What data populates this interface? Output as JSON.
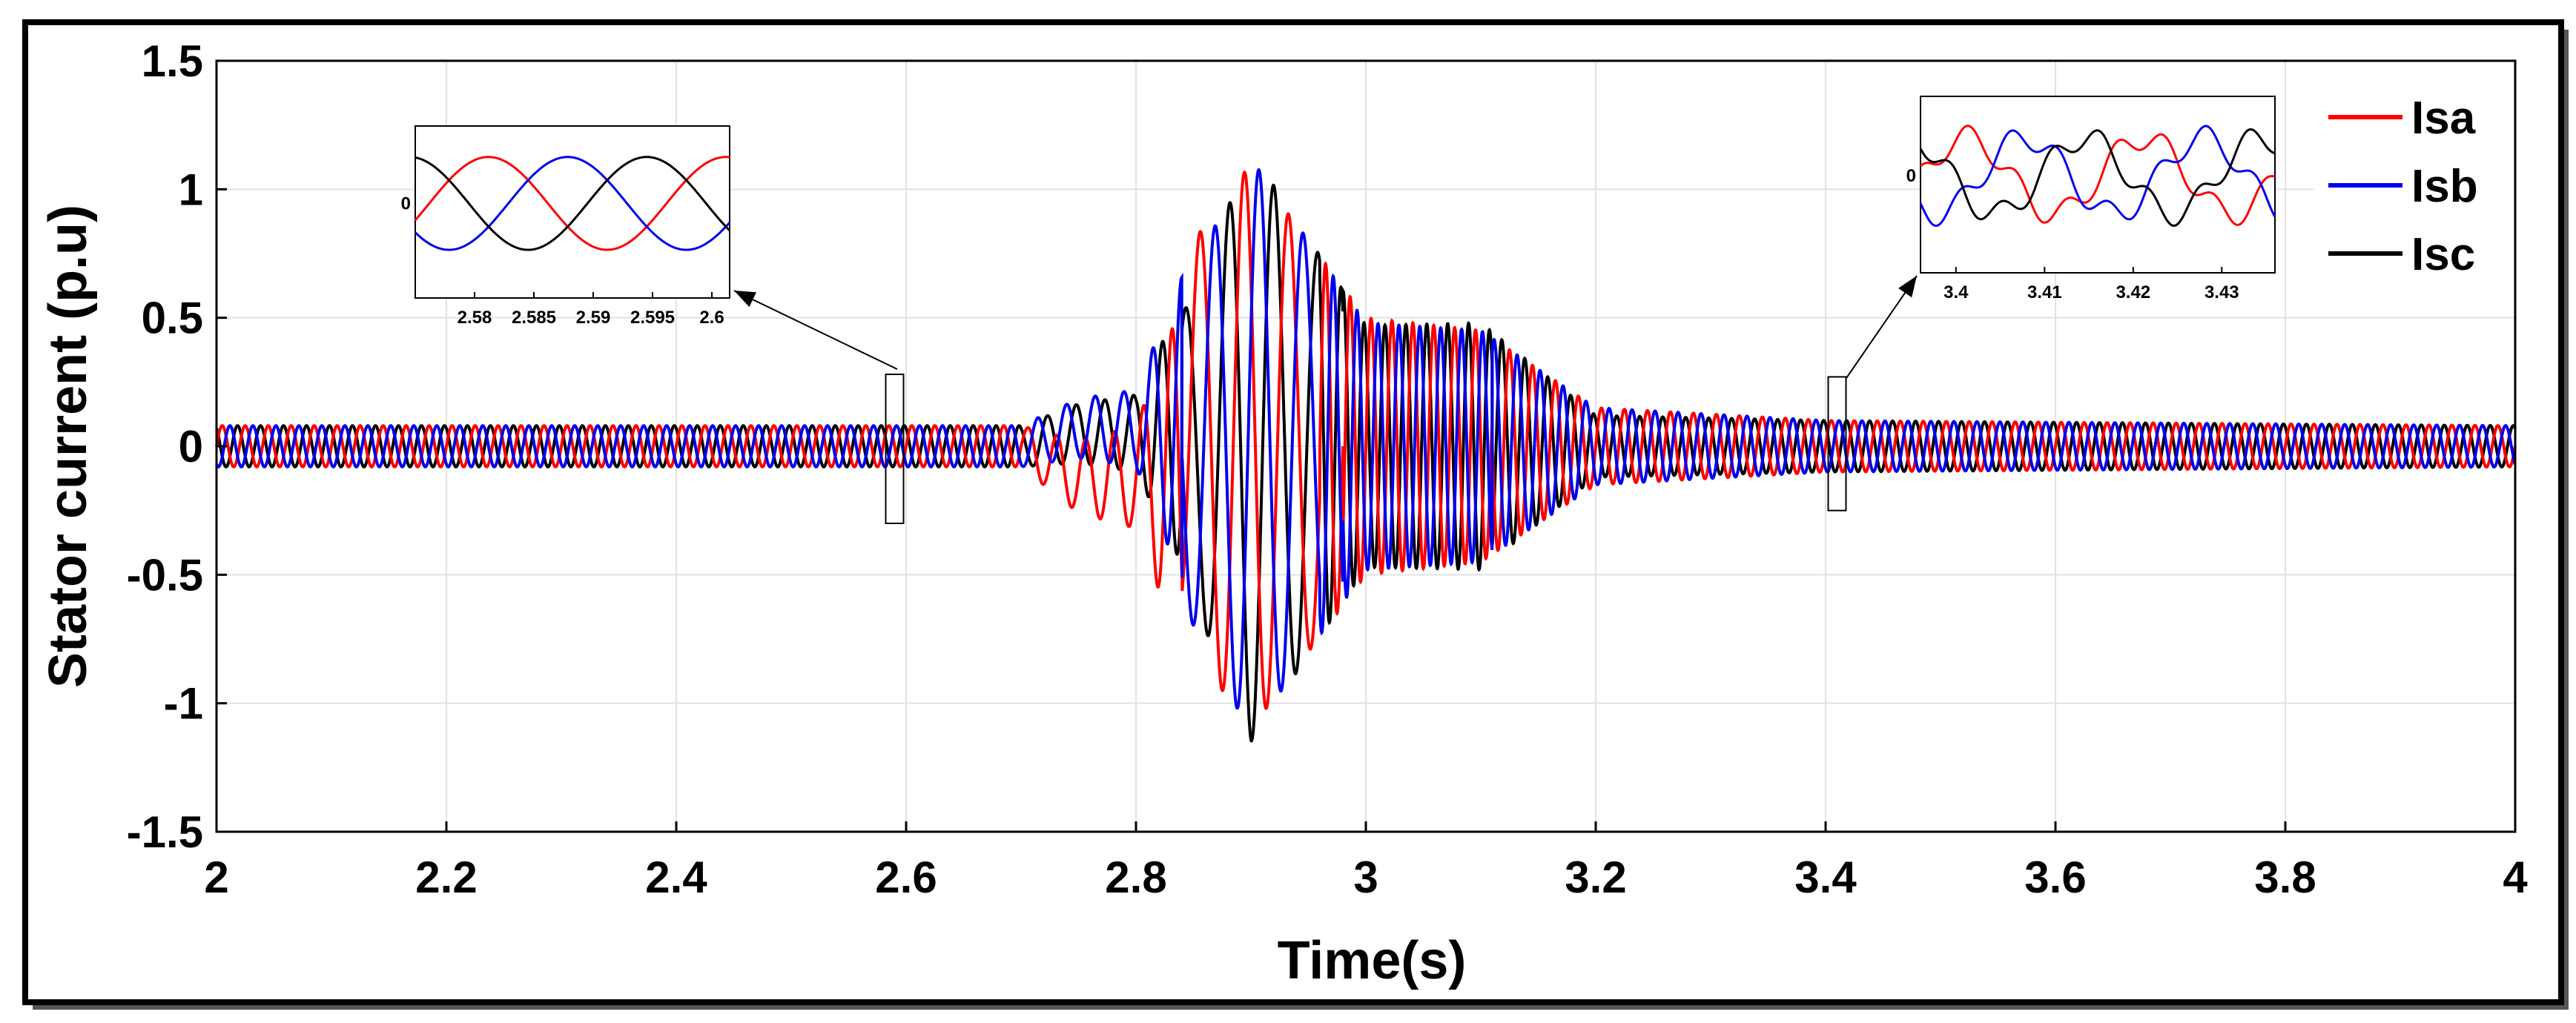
{
  "chart_data": {
    "type": "line",
    "title": "",
    "xlabel": "Time(s)",
    "ylabel": "Stator current (p.u)",
    "xlim": [
      2,
      4
    ],
    "ylim": [
      -1.5,
      1.5
    ],
    "x_ticks": [
      "2",
      "2.2",
      "2.4",
      "2.6",
      "2.8",
      "3",
      "3.2",
      "3.4",
      "3.6",
      "3.8",
      "4"
    ],
    "y_ticks": [
      "1.5",
      "1",
      "0.5",
      "0",
      "-0.5",
      "-1",
      "-1.5"
    ],
    "grid": true,
    "legend_position": "top-right",
    "colors": {
      "Isa": "#ff0000",
      "Isb": "#0000ee",
      "Isc": "#000000"
    },
    "series": [
      {
        "name": "Isa",
        "description_samples": {
          "x": [
            2.0,
            2.7,
            2.8,
            2.85,
            2.9,
            3.0,
            3.1,
            3.2,
            3.4,
            4.0
          ],
          "amplitude": [
            0.08,
            0.08,
            0.2,
            0.8,
            1.1,
            0.5,
            0.45,
            0.15,
            0.1,
            0.08
          ]
        }
      },
      {
        "name": "Isb",
        "description_samples": {
          "x": [
            2.0,
            2.7,
            2.8,
            2.85,
            2.9,
            3.0,
            3.1,
            3.2,
            3.4,
            4.0
          ],
          "amplitude": [
            0.08,
            0.08,
            0.15,
            0.7,
            1.12,
            0.48,
            0.45,
            0.15,
            0.1,
            0.08
          ]
        }
      },
      {
        "name": "Isc",
        "description_samples": {
          "x": [
            2.0,
            2.7,
            2.8,
            2.85,
            2.9,
            3.0,
            3.1,
            3.2,
            3.4,
            4.0
          ],
          "amplitude": [
            0.08,
            0.08,
            0.15,
            0.6,
            1.15,
            0.47,
            0.48,
            0.12,
            0.1,
            0.08
          ]
        }
      }
    ],
    "insets": [
      {
        "xlim": [
          2.575,
          2.6015
        ],
        "x_ticks": [
          "2.58",
          "2.585",
          "2.59",
          "2.595",
          "2.6"
        ],
        "y_tick": "0"
      },
      {
        "xlim": [
          3.396,
          3.436
        ],
        "x_ticks": [
          "3.4",
          "3.41",
          "3.42",
          "3.43"
        ],
        "y_tick": "0"
      }
    ]
  }
}
